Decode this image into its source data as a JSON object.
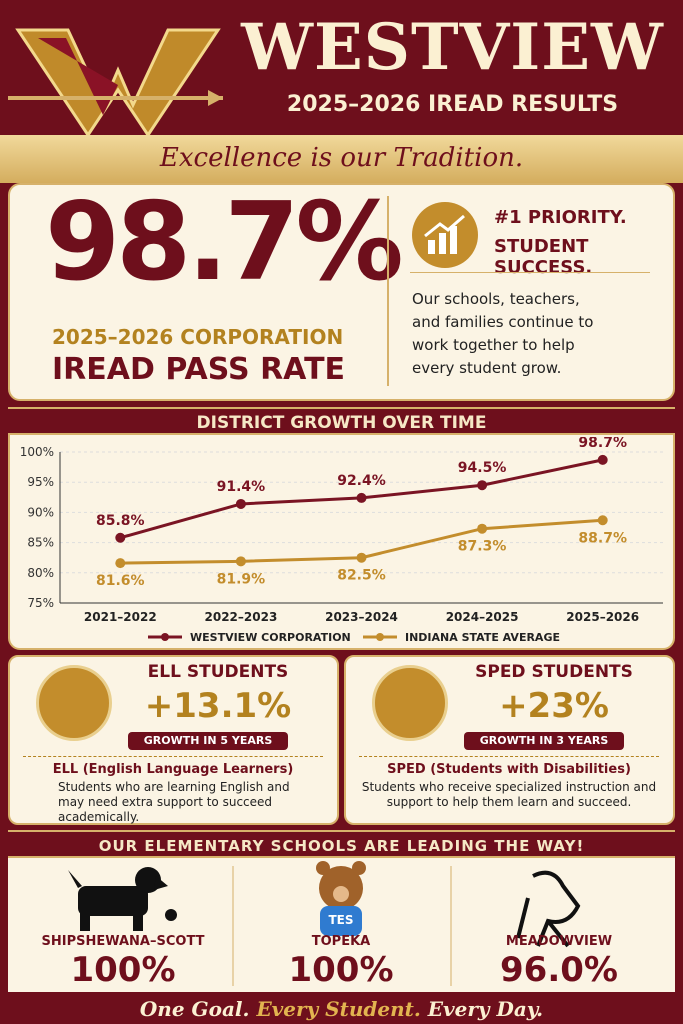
{
  "header": {
    "title": "WESTVIEW",
    "subtitle": "2025–2026 IREAD RESULTS",
    "tagline": "Excellence is our Tradition."
  },
  "hero": {
    "rate": "98.7%",
    "label_top": "2025–2026 CORPORATION",
    "label_bottom": "IREAD PASS RATE",
    "priority_1": "#1 PRIORITY.",
    "priority_2": "STUDENT SUCCESS.",
    "body": "Our schools, teachers, and families continue to work together to help every student grow."
  },
  "chart_data": {
    "type": "line",
    "title": "DISTRICT GROWTH OVER TIME",
    "categories": [
      "2021–2022",
      "2022–2023",
      "2023–2024",
      "2024–2025",
      "2025–2026"
    ],
    "series": [
      {
        "name": "WESTVIEW CORPORATION",
        "color": "#7a1423",
        "values": [
          85.8,
          91.4,
          92.4,
          94.5,
          98.7
        ],
        "value_labels": [
          "85.8%",
          "91.4%",
          "92.4%",
          "94.5%",
          "98.7%"
        ]
      },
      {
        "name": "INDIANA STATE AVERAGE",
        "color": "#c38d2c",
        "values": [
          81.6,
          81.9,
          82.5,
          87.3,
          88.7
        ],
        "value_labels": [
          "81.6%",
          "81.9%",
          "82.5%",
          "87.3%",
          "88.7%"
        ]
      }
    ],
    "ylim": [
      75,
      100
    ],
    "yticks": [
      {
        "value": 75,
        "label": "75%"
      },
      {
        "value": 80,
        "label": "80%"
      },
      {
        "value": 85,
        "label": "85%"
      },
      {
        "value": 90,
        "label": "90%"
      },
      {
        "value": 95,
        "label": "95%"
      },
      {
        "value": 100,
        "label": "100%"
      }
    ],
    "grid": true,
    "legend": "bottom"
  },
  "groups": [
    {
      "title": "ELL STUDENTS",
      "growth": "+13.1%",
      "period": "GROWTH IN 5 YEARS",
      "term": "ELL (English Language Learners)",
      "body": "Students who are learning English and may need extra support to succeed academically."
    },
    {
      "title": "SPED STUDENTS",
      "growth": "+23%",
      "period": "GROWTH IN 3 YEARS",
      "term": "SPED (Students with Disabilities)",
      "body": "Students who receive specialized instruction and support to help them learn and succeed."
    }
  ],
  "schools_banner": "OUR ELEMENTARY SCHOOLS ARE LEADING THE WAY!",
  "schools": [
    {
      "name": "SHIPSHEWANA–SCOTT",
      "rate": "100%"
    },
    {
      "name": "TOPEKA",
      "rate": "100%",
      "mascot_text": "TES"
    },
    {
      "name": "MEADOWVIEW",
      "rate": "96.0%"
    }
  ],
  "footer": {
    "part1": "One Goal.",
    "part2": "Every Student.",
    "part3": "Every Day."
  }
}
